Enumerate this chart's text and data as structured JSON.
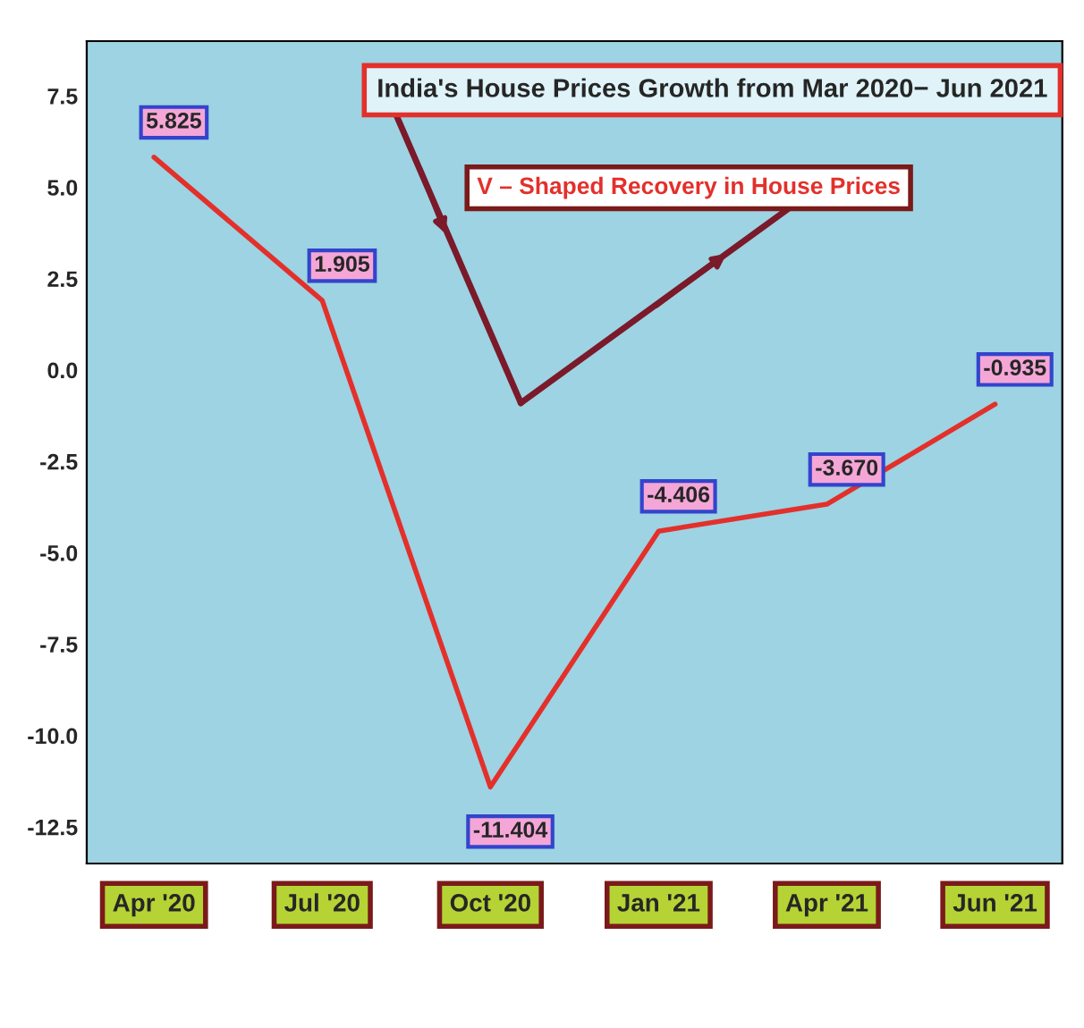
{
  "chart_data": {
    "type": "line",
    "title": "India's House Prices Growth from Mar 2020− Jun 2021",
    "annotations": [
      "V – Shaped Recovery in House Prices"
    ],
    "categories": [
      "Apr '20",
      "Jul '20",
      "Oct '20",
      "Jan '21",
      "Apr '21",
      "Jun '21"
    ],
    "series": [
      {
        "color": "#e3302b",
        "values": [
          5.825,
          1.905,
          -11.404,
          -4.406,
          -3.67,
          -0.935
        ]
      }
    ],
    "value_labels": [
      "5.825",
      "1.905",
      "-11.404",
      "-4.406",
      "-3.670",
      "-0.935"
    ],
    "ylim": [
      -13.5,
      9
    ],
    "yticks": [
      7.5,
      {
        "value": 5,
        "label": "5.0"
      },
      2.5,
      {
        "value": 0,
        "label": "0.0"
      },
      -2.5,
      {
        "value": -5,
        "label": "-5.0"
      },
      -7.5,
      {
        "value": -10,
        "label": "-10.0"
      },
      -12.5
    ],
    "grid": false,
    "legend": false,
    "marker": "none",
    "line_style": "solid"
  }
}
